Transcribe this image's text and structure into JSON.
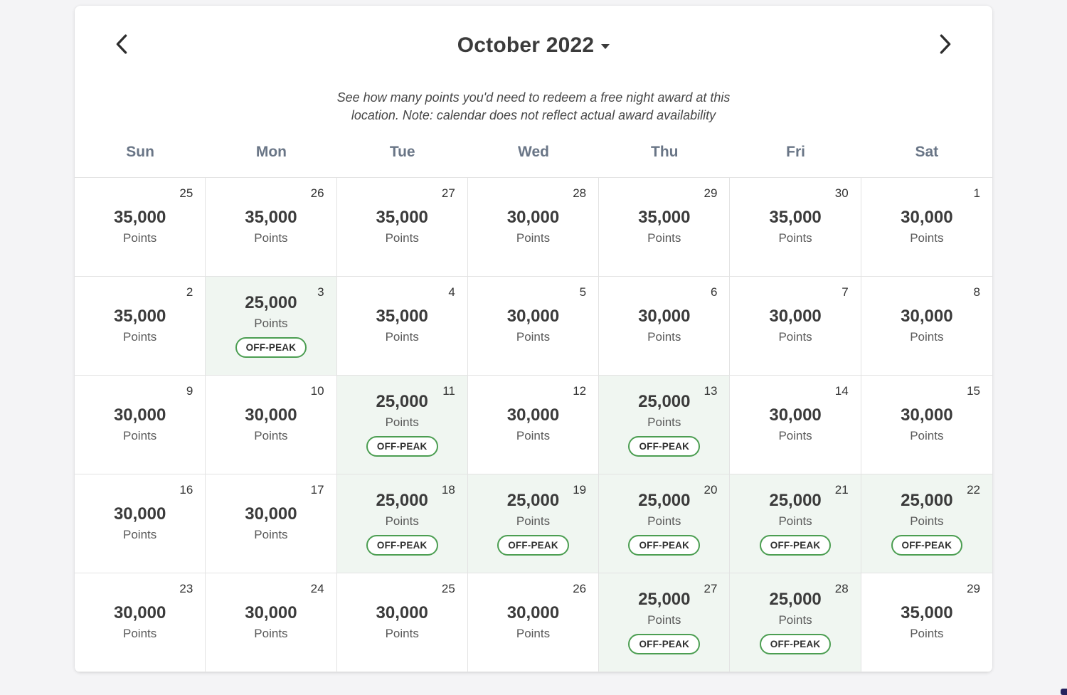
{
  "calendar": {
    "title": "October 2022",
    "subtitle_line1": "See how many points you'd need to redeem a free night award at this",
    "subtitle_line2": "location. Note: calendar does not reflect actual award availability",
    "weekdays": [
      "Sun",
      "Mon",
      "Tue",
      "Wed",
      "Thu",
      "Fri",
      "Sat"
    ],
    "points_label": "Points",
    "off_peak_label": "OFF-PEAK",
    "colors": {
      "accent_green": "#4c9e52",
      "off_peak_bg": "#f0f6f1",
      "grid_line": "#e3e3e3"
    },
    "weeks": [
      [
        {
          "day": "25",
          "points": "35,000",
          "off_peak": false
        },
        {
          "day": "26",
          "points": "35,000",
          "off_peak": false
        },
        {
          "day": "27",
          "points": "35,000",
          "off_peak": false
        },
        {
          "day": "28",
          "points": "30,000",
          "off_peak": false
        },
        {
          "day": "29",
          "points": "35,000",
          "off_peak": false
        },
        {
          "day": "30",
          "points": "35,000",
          "off_peak": false
        },
        {
          "day": "1",
          "points": "30,000",
          "off_peak": false
        }
      ],
      [
        {
          "day": "2",
          "points": "35,000",
          "off_peak": false
        },
        {
          "day": "3",
          "points": "25,000",
          "off_peak": true
        },
        {
          "day": "4",
          "points": "35,000",
          "off_peak": false
        },
        {
          "day": "5",
          "points": "30,000",
          "off_peak": false
        },
        {
          "day": "6",
          "points": "30,000",
          "off_peak": false
        },
        {
          "day": "7",
          "points": "30,000",
          "off_peak": false
        },
        {
          "day": "8",
          "points": "30,000",
          "off_peak": false
        }
      ],
      [
        {
          "day": "9",
          "points": "30,000",
          "off_peak": false
        },
        {
          "day": "10",
          "points": "30,000",
          "off_peak": false
        },
        {
          "day": "11",
          "points": "25,000",
          "off_peak": true
        },
        {
          "day": "12",
          "points": "30,000",
          "off_peak": false
        },
        {
          "day": "13",
          "points": "25,000",
          "off_peak": true
        },
        {
          "day": "14",
          "points": "30,000",
          "off_peak": false
        },
        {
          "day": "15",
          "points": "30,000",
          "off_peak": false
        }
      ],
      [
        {
          "day": "16",
          "points": "30,000",
          "off_peak": false
        },
        {
          "day": "17",
          "points": "30,000",
          "off_peak": false
        },
        {
          "day": "18",
          "points": "25,000",
          "off_peak": true
        },
        {
          "day": "19",
          "points": "25,000",
          "off_peak": true
        },
        {
          "day": "20",
          "points": "25,000",
          "off_peak": true
        },
        {
          "day": "21",
          "points": "25,000",
          "off_peak": true
        },
        {
          "day": "22",
          "points": "25,000",
          "off_peak": true
        }
      ],
      [
        {
          "day": "23",
          "points": "30,000",
          "off_peak": false
        },
        {
          "day": "24",
          "points": "30,000",
          "off_peak": false
        },
        {
          "day": "25",
          "points": "30,000",
          "off_peak": false
        },
        {
          "day": "26",
          "points": "30,000",
          "off_peak": false
        },
        {
          "day": "27",
          "points": "25,000",
          "off_peak": true
        },
        {
          "day": "28",
          "points": "25,000",
          "off_peak": true
        },
        {
          "day": "29",
          "points": "35,000",
          "off_peak": false
        }
      ]
    ]
  }
}
